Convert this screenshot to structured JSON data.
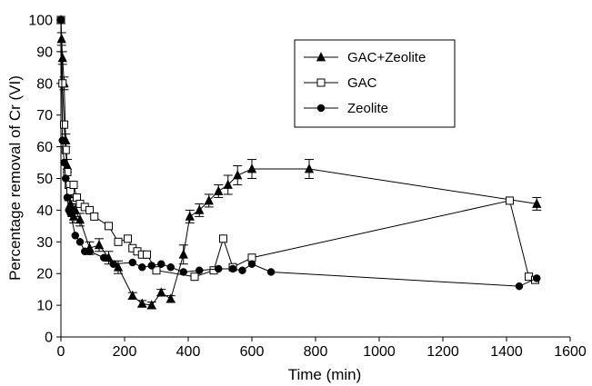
{
  "chart_data": {
    "type": "line",
    "xlabel": "Time (min)",
    "ylabel": "Percentage removal of Cr (VI)",
    "xlim": [
      0,
      1600
    ],
    "ylim": [
      0,
      100
    ],
    "xticks": [
      0,
      200,
      400,
      600,
      800,
      1000,
      1200,
      1400,
      1600
    ],
    "yticks": [
      0,
      10,
      20,
      30,
      40,
      50,
      60,
      70,
      80,
      90,
      100
    ],
    "grid": false,
    "legend": {
      "placement": "top-right",
      "items": [
        "GAC+Zeolite",
        "GAC",
        "Zeolite"
      ]
    },
    "series": [
      {
        "name": "GAC+Zeolite",
        "marker": "filled-triangle",
        "color": "#000000",
        "x": [
          0,
          2,
          5,
          10,
          15,
          20,
          25,
          30,
          35,
          40,
          45,
          60,
          90,
          120,
          150,
          180,
          225,
          255,
          285,
          315,
          345,
          385,
          405,
          435,
          465,
          495,
          525,
          555,
          600,
          780,
          1495
        ],
        "y": [
          100,
          94,
          88,
          80,
          62,
          54,
          45,
          42,
          40,
          38,
          40,
          37,
          28,
          29,
          25,
          22,
          13,
          10.5,
          10,
          14,
          12,
          26,
          38,
          40,
          43,
          46,
          48,
          51,
          53,
          53,
          42
        ],
        "errors": [
          0,
          2,
          2,
          2,
          2,
          2,
          2,
          2,
          2,
          2,
          2,
          2,
          2,
          2,
          2,
          2,
          1,
          1,
          1,
          1,
          1,
          3,
          2,
          2,
          2,
          2,
          3,
          3,
          3,
          3,
          2
        ]
      },
      {
        "name": "GAC",
        "marker": "open-square",
        "color": "#000000",
        "x": [
          0,
          5,
          10,
          15,
          20,
          25,
          30,
          40,
          50,
          60,
          75,
          90,
          105,
          150,
          180,
          210,
          225,
          240,
          255,
          270,
          300,
          420,
          480,
          510,
          540,
          600,
          1410,
          1470,
          1490
        ],
        "y": [
          100,
          80,
          67,
          59,
          52,
          48,
          46,
          48,
          44,
          42,
          41,
          40,
          38,
          35,
          30,
          31,
          28,
          27,
          26,
          26,
          21,
          19,
          21,
          31,
          22,
          25,
          43,
          19,
          18
        ]
      },
      {
        "name": "Zeolite",
        "marker": "filled-circle",
        "color": "#000000",
        "x": [
          0,
          5,
          10,
          15,
          20,
          25,
          30,
          45,
          60,
          75,
          90,
          135,
          165,
          225,
          255,
          285,
          315,
          345,
          385,
          435,
          495,
          540,
          570,
          600,
          660,
          1440,
          1495
        ],
        "y": [
          100,
          62,
          55,
          50,
          44,
          40,
          39,
          32,
          30,
          27,
          27,
          25,
          23,
          23.5,
          22,
          22.5,
          23,
          22,
          20.5,
          21,
          21.5,
          21.5,
          21,
          23,
          20.5,
          16,
          18.5
        ]
      }
    ]
  }
}
